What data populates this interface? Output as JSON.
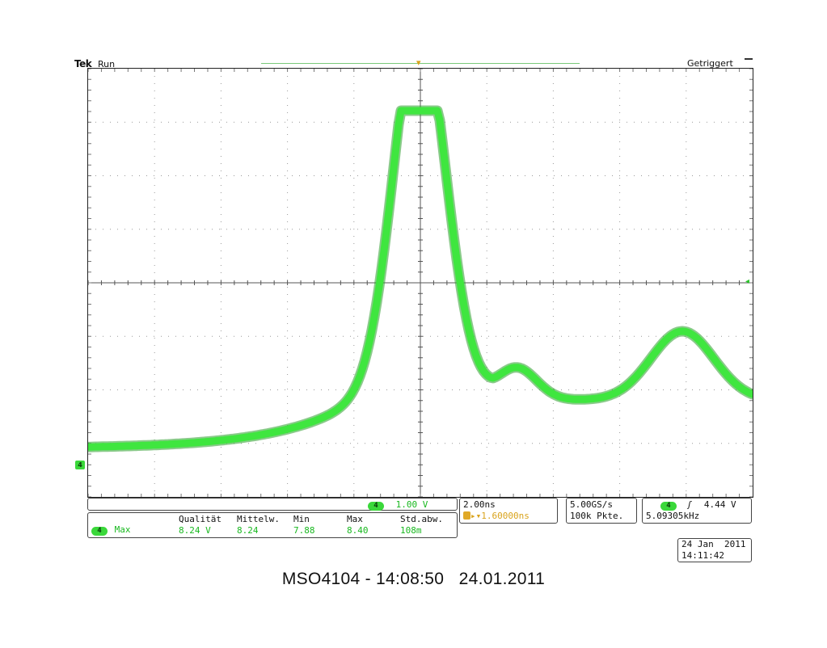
{
  "header": {
    "brand": "Tek",
    "run_state": "Run",
    "trigger_state": "Getriggert"
  },
  "scope": {
    "divisions_x": 10,
    "divisions_y": 8,
    "trace_color": "#3fe63f",
    "ground_marker": "4",
    "trigger_marker": "T"
  },
  "channel_scale": {
    "channel": "4",
    "value": "1.00 V"
  },
  "measurement": {
    "channel": "4",
    "name": "Max",
    "headers": [
      "Qualität",
      "Mittelw.",
      "Min",
      "Max",
      "Std.abw."
    ],
    "values": [
      "8.24 V",
      "8.24",
      "7.88",
      "8.40",
      "108m"
    ]
  },
  "timebase": {
    "scale": "2.00ns",
    "offset": "1.60000ns"
  },
  "acquisition": {
    "sample_rate": "5.00GS/s",
    "record_length": "100k Pkte."
  },
  "trigger": {
    "channel": "4",
    "slope": "ʃ",
    "level": "4.44 V",
    "frequency": "5.09305kHz"
  },
  "datetime": {
    "date": "24 Jan  2011",
    "time": "14:11:42"
  },
  "caption": "MSO4104 - 14:08:50   24.01.2011"
}
